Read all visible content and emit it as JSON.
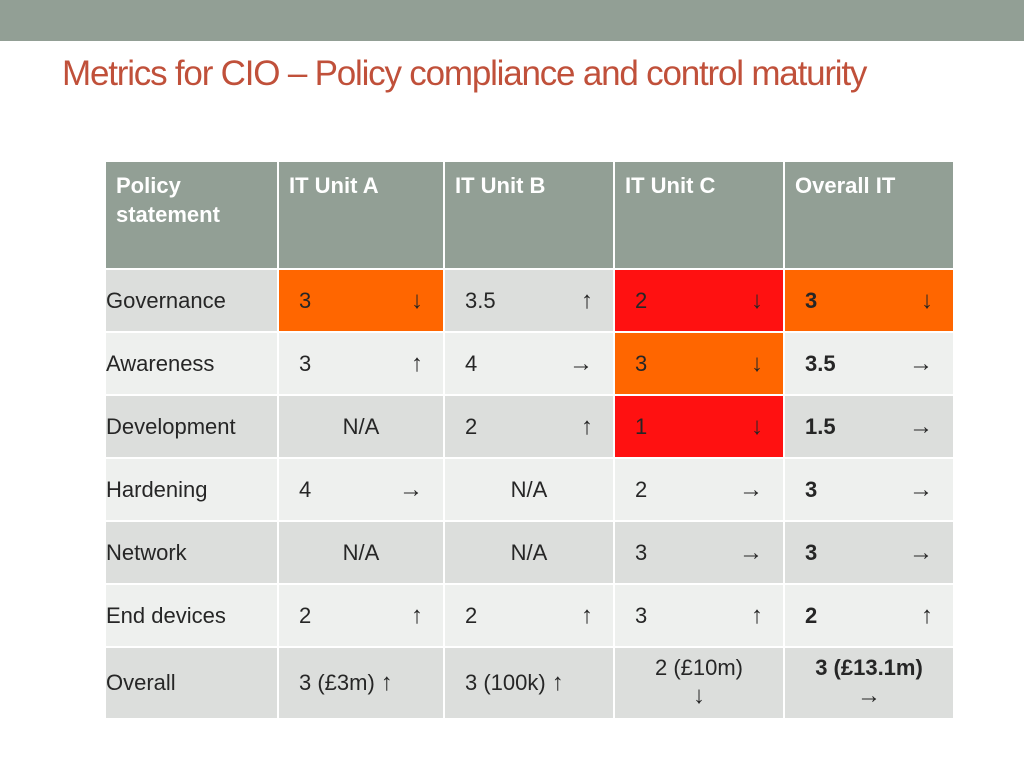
{
  "title": "Metrics for CIO – Policy compliance and control maturity",
  "colors": {
    "header_bg": "#929f95",
    "title_color": "#c0503a",
    "orange": "#ff6600",
    "red": "#ff1111"
  },
  "icons": {
    "up": "↑",
    "down": "↓",
    "right": "→"
  },
  "table": {
    "headers": [
      "Policy statement",
      "IT Unit A",
      "IT Unit B",
      "IT Unit C",
      "Overall IT"
    ],
    "rows": [
      {
        "label": "Governance",
        "cells": [
          {
            "value": "3",
            "trend": "down",
            "highlight": "orange"
          },
          {
            "value": "3.5",
            "trend": "up"
          },
          {
            "value": "2",
            "trend": "down",
            "highlight": "red"
          },
          {
            "value": "3",
            "trend": "down",
            "highlight": "orange"
          }
        ]
      },
      {
        "label": "Awareness",
        "cells": [
          {
            "value": "3",
            "trend": "up"
          },
          {
            "value": "4",
            "trend": "right"
          },
          {
            "value": "3",
            "trend": "down",
            "highlight": "orange"
          },
          {
            "value": "3.5",
            "trend": "right"
          }
        ]
      },
      {
        "label": "Development",
        "cells": [
          {
            "value": "N/A"
          },
          {
            "value": "2",
            "trend": "up"
          },
          {
            "value": "1",
            "trend": "down",
            "highlight": "red"
          },
          {
            "value": "1.5",
            "trend": "right"
          }
        ]
      },
      {
        "label": "Hardening",
        "cells": [
          {
            "value": "4",
            "trend": "right"
          },
          {
            "value": "N/A"
          },
          {
            "value": "2",
            "trend": "right"
          },
          {
            "value": "3",
            "trend": "right"
          }
        ]
      },
      {
        "label": "Network",
        "cells": [
          {
            "value": "N/A"
          },
          {
            "value": "N/A"
          },
          {
            "value": "3",
            "trend": "right"
          },
          {
            "value": "3",
            "trend": "right"
          }
        ]
      },
      {
        "label": "End devices",
        "cells": [
          {
            "value": "2",
            "trend": "up"
          },
          {
            "value": "2",
            "trend": "up"
          },
          {
            "value": "3",
            "trend": "up"
          },
          {
            "value": "2",
            "trend": "up"
          }
        ]
      },
      {
        "label": "Overall",
        "cells": [
          {
            "value": "3 (£3m)",
            "trend": "up"
          },
          {
            "value": "3 (100k)",
            "trend": "up"
          },
          {
            "value": "2 (£10m)",
            "trend": "down"
          },
          {
            "value": "3 (£13.1m)",
            "trend": "right"
          }
        ]
      }
    ]
  }
}
